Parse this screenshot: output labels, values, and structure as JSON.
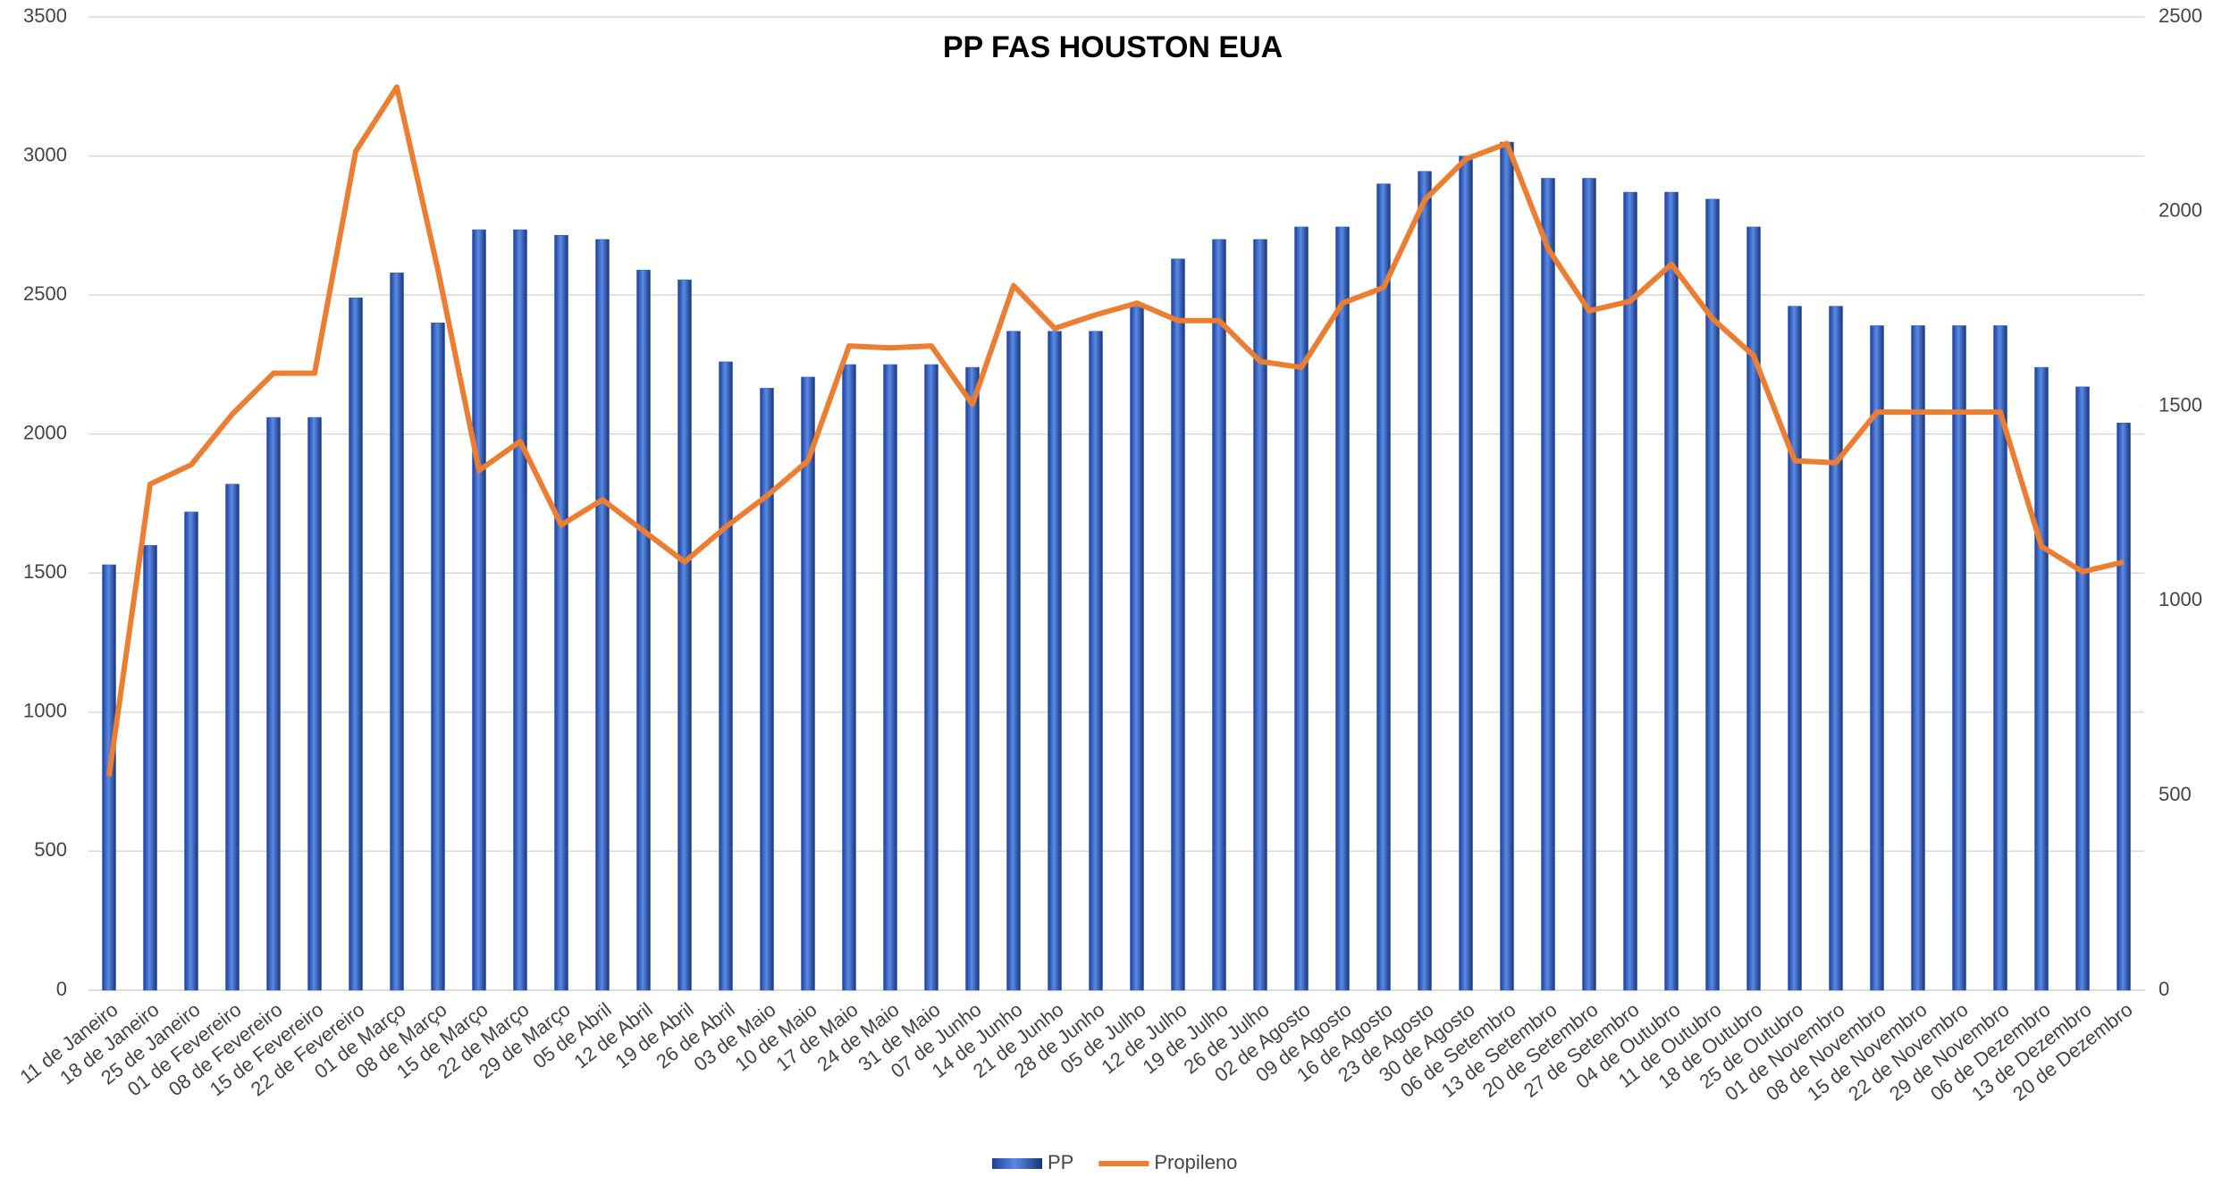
{
  "chart_data": {
    "type": "bar",
    "title": "PP FAS HOUSTON EUA",
    "categories": [
      "11 de Janeiro",
      "18 de Janeiro",
      "25 de Janeiro",
      "01 de Fevereiro",
      "08 de Fevereiro",
      "15 de Fevereiro",
      "22 de Fevereiro",
      "01 de Março",
      "08 de Março",
      "15 de Março",
      "22 de Março",
      "29 de Março",
      "05 de Abril",
      "12 de Abril",
      "19 de Abril",
      "26 de Abril",
      "03 de Maio",
      "10 de Maio",
      "17 de Maio",
      "24 de Maio",
      "31 de Maio",
      "07 de Junho",
      "14 de Junho",
      "21 de Junho",
      "28 de Junho",
      "05 de Julho",
      "12 de Julho",
      "19 de Julho",
      "26 de Julho",
      "02 de Agosto",
      "09 de Agosto",
      "16 de Agosto",
      "23 de Agosto",
      "30 de Agosto",
      "06 de Setembro",
      "13 de Setembro",
      "20 de Setembro",
      "27 de Setembro",
      "04 de Outubro",
      "11 de Outubro",
      "18 de Outubro",
      "25 de Outubro",
      "01 de Novembro",
      "08 de Novembro",
      "15 de Novembro",
      "22 de Novembro",
      "29 de Novembro",
      "06 de Dezembro",
      "13 de Dezembro",
      "20 de Dezembro"
    ],
    "series": [
      {
        "name": "PP",
        "type": "bar",
        "color": "#2f5fc4",
        "values": [
          1530,
          1600,
          1720,
          1820,
          2060,
          2060,
          2490,
          2580,
          2400,
          2735,
          2735,
          2715,
          2700,
          2590,
          2555,
          2260,
          2165,
          2205,
          2250,
          2250,
          2250,
          2240,
          2370,
          2370,
          2370,
          2460,
          2630,
          2700,
          2700,
          2745,
          2745,
          2900,
          2945,
          3000,
          3050,
          2920,
          2920,
          2870,
          2870,
          2845,
          2745,
          2460,
          2460,
          2390,
          2390,
          2390,
          2390,
          2240,
          2170,
          2040
        ]
      },
      {
        "name": "Propileno",
        "type": "line",
        "axis": "y2",
        "color": "#ed7d31",
        "values": [
          550,
          1300,
          1350,
          1480,
          1585,
          1585,
          2155,
          2320,
          1850,
          1335,
          1410,
          1195,
          1260,
          1180,
          1100,
          1190,
          1270,
          1360,
          1655,
          1650,
          1655,
          1505,
          1810,
          1700,
          1735,
          1765,
          1720,
          1720,
          1615,
          1600,
          1765,
          1805,
          2030,
          2135,
          2175,
          1905,
          1745,
          1770,
          1865,
          1725,
          1630,
          1360,
          1355,
          1485,
          1485,
          1485,
          1485,
          1140,
          1075,
          1100
        ]
      }
    ],
    "ylim": [
      0,
      3500
    ],
    "yticks": [
      0,
      500,
      1000,
      1500,
      2000,
      2500,
      3000,
      3500
    ],
    "y2lim": [
      0,
      2500
    ],
    "y2ticks": [
      0,
      500,
      1000,
      1500,
      2000,
      2500
    ],
    "grid": true,
    "legend": "bottom"
  }
}
